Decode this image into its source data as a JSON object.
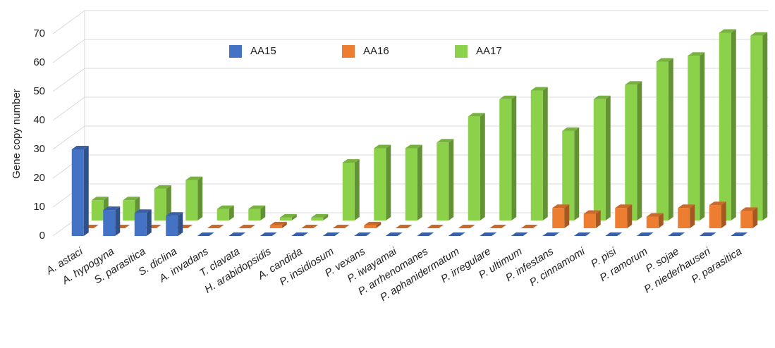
{
  "chart_data": {
    "type": "bar3d",
    "y_label": "Gene copy number",
    "categories": [
      "A. astaci",
      "A. hypogyna",
      "S. parasitica",
      "S. diclina",
      "A. invadans",
      "T. clavata",
      "H. arabidopsidis",
      "A. candida",
      "P. insidiosum",
      "P. vexans",
      "P. iwayamai",
      "P. arrhenomanes",
      "P. aphanidermatum",
      "P. irregulare",
      "P. ultimum",
      "P. infestans",
      "P. cinnamomi",
      "P. pisi",
      "P. ramorum",
      "P. sojae",
      "P. niederhauseri",
      "P. parasitica"
    ],
    "series": [
      {
        "name": "AA15",
        "color": "#4472c4",
        "values": [
          30,
          9,
          8,
          7,
          0,
          0,
          0,
          0,
          0,
          0,
          0,
          0,
          0,
          0,
          0,
          0,
          0,
          0,
          0,
          0,
          0,
          0
        ]
      },
      {
        "name": "AA16",
        "color": "#ed7d31",
        "values": [
          0,
          0,
          0,
          0,
          0,
          0,
          1,
          0,
          0,
          1,
          0,
          0,
          0,
          0,
          0,
          7,
          5,
          7,
          4,
          7,
          8,
          6
        ]
      },
      {
        "name": "AA17",
        "color": "#8cd14a",
        "values": [
          7,
          7,
          11,
          14,
          4,
          4,
          1,
          1,
          20,
          25,
          25,
          27,
          36,
          42,
          45,
          31,
          42,
          47,
          55,
          57,
          65,
          64
        ]
      }
    ],
    "ylim": [
      0,
      70
    ],
    "yticks": [
      0,
      10,
      20,
      30,
      40,
      50,
      60,
      70
    ],
    "grid": true,
    "legend": "top"
  }
}
